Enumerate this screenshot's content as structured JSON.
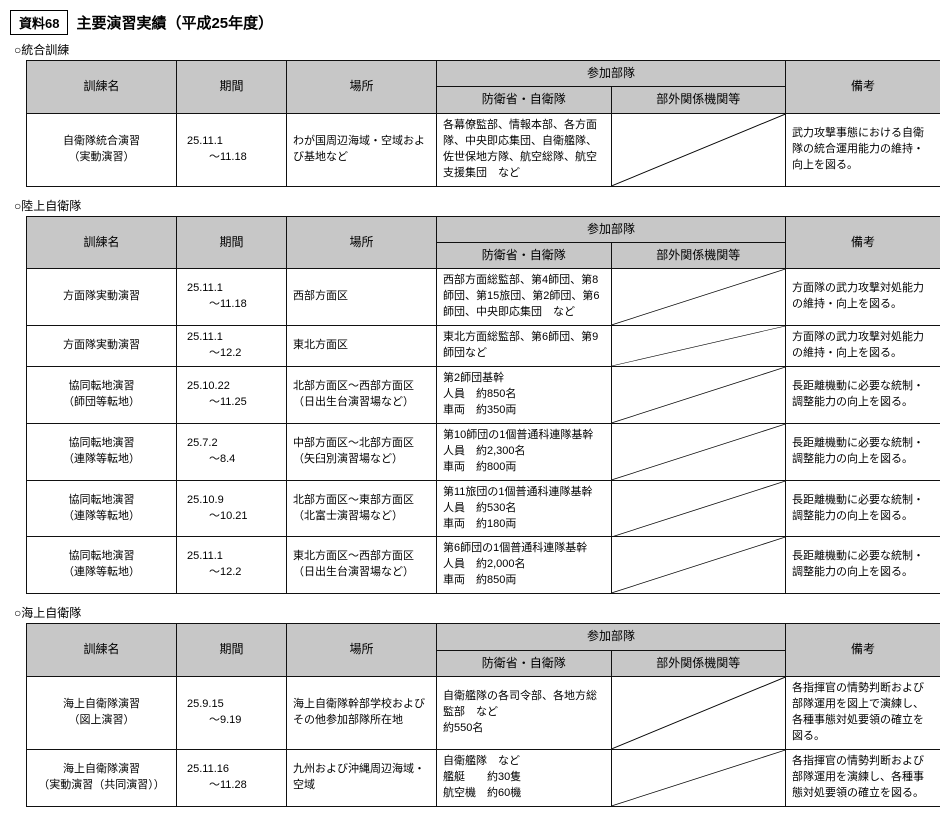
{
  "header": {
    "tag": "資料68",
    "title": "主要演習実績（平成25年度）"
  },
  "columns": {
    "name": "訓練名",
    "period": "期間",
    "place": "場所",
    "units_group": "参加部隊",
    "units_self": "防衛省・自衛隊",
    "units_ext": "部外関係機関等",
    "notes": "備考"
  },
  "sections": [
    {
      "label": "○統合訓練",
      "rows": [
        {
          "name": "自衛隊統合演習\n（実動演習）",
          "period": "25.11.1\n　　～11.18",
          "place": "わが国周辺海域・空域および基地など",
          "units_self": "各幕僚監部、情報本部、各方面隊、中央即応集団、自衛艦隊、佐世保地方隊、航空総隊、航空支援集団　など",
          "units_ext_diag": true,
          "notes": "武力攻撃事態における自衛隊の統合運用能力の維持・向上を図る。"
        }
      ]
    },
    {
      "label": "○陸上自衛隊",
      "rows": [
        {
          "name": "方面隊実動演習",
          "period": "25.11.1\n　　～11.18",
          "place": "西部方面区",
          "units_self": "西部方面総監部、第4師団、第8師団、第15旅団、第2師団、第6師団、中央即応集団　など",
          "units_ext_diag": true,
          "notes": "方面隊の武力攻撃対処能力の維持・向上を図る。"
        },
        {
          "name": "方面隊実動演習",
          "period": "25.11.1\n　　～12.2",
          "place": "東北方面区",
          "units_self": "東北方面総監部、第6師団、第9師団など",
          "units_ext_diag": true,
          "notes": "方面隊の武力攻撃対処能力の維持・向上を図る。"
        },
        {
          "name": "協同転地演習\n（師団等転地）",
          "period": "25.10.22\n　　～11.25",
          "place": "北部方面区～西部方面区（日出生台演習場など）",
          "units_self": "第2師団基幹\n人員　約850名\n車両　約350両",
          "units_ext_diag": true,
          "notes": "長距離機動に必要な統制・調整能力の向上を図る。"
        },
        {
          "name": "協同転地演習\n（連隊等転地）",
          "period": "25.7.2\n　　～8.4",
          "place": "中部方面区～北部方面区（矢臼別演習場など）",
          "units_self": "第10師団の1個普通科連隊基幹\n人員　約2,300名\n車両　約800両",
          "units_ext_diag": true,
          "notes": "長距離機動に必要な統制・調整能力の向上を図る。"
        },
        {
          "name": "協同転地演習\n（連隊等転地）",
          "period": "25.10.9\n　　～10.21",
          "place": "北部方面区～東部方面区（北富士演習場など）",
          "units_self": "第11旅団の1個普通科連隊基幹\n人員　約530名\n車両　約180両",
          "units_ext_diag": true,
          "notes": "長距離機動に必要な統制・調整能力の向上を図る。"
        },
        {
          "name": "協同転地演習\n（連隊等転地）",
          "period": "25.11.1\n　　～12.2",
          "place": "東北方面区～西部方面区（日出生台演習場など）",
          "units_self": "第6師団の1個普通科連隊基幹\n人員　約2,000名\n車両　約850両",
          "units_ext_diag": true,
          "notes": "長距離機動に必要な統制・調整能力の向上を図る。"
        }
      ]
    },
    {
      "label": "○海上自衛隊",
      "rows": [
        {
          "name": "海上自衛隊演習\n（図上演習）",
          "period": "25.9.15\n　　～9.19",
          "place": "海上自衛隊幹部学校およびその他参加部隊所在地",
          "units_self": "自衛艦隊の各司令部、各地方総監部　など\n約550名",
          "units_ext_diag": true,
          "notes": "各指揮官の情勢判断および部隊運用を図上で演練し、各種事態対処要領の確立を図る。"
        },
        {
          "name": "海上自衛隊演習\n（実動演習（共同演習））",
          "period": "25.11.16\n　　～11.28",
          "place": "九州および沖縄周辺海域・空域",
          "units_self": "自衛艦隊　など\n艦艇　　約30隻\n航空機　約60機",
          "units_ext_diag": true,
          "notes": "各指揮官の情勢判断および部隊運用を演練し、各種事態対処要領の確立を図る。"
        }
      ]
    }
  ],
  "style": {
    "header_bg": "#c7c7c7",
    "border_color": "#111111",
    "font_size_body": 11,
    "font_size_header": 12
  }
}
